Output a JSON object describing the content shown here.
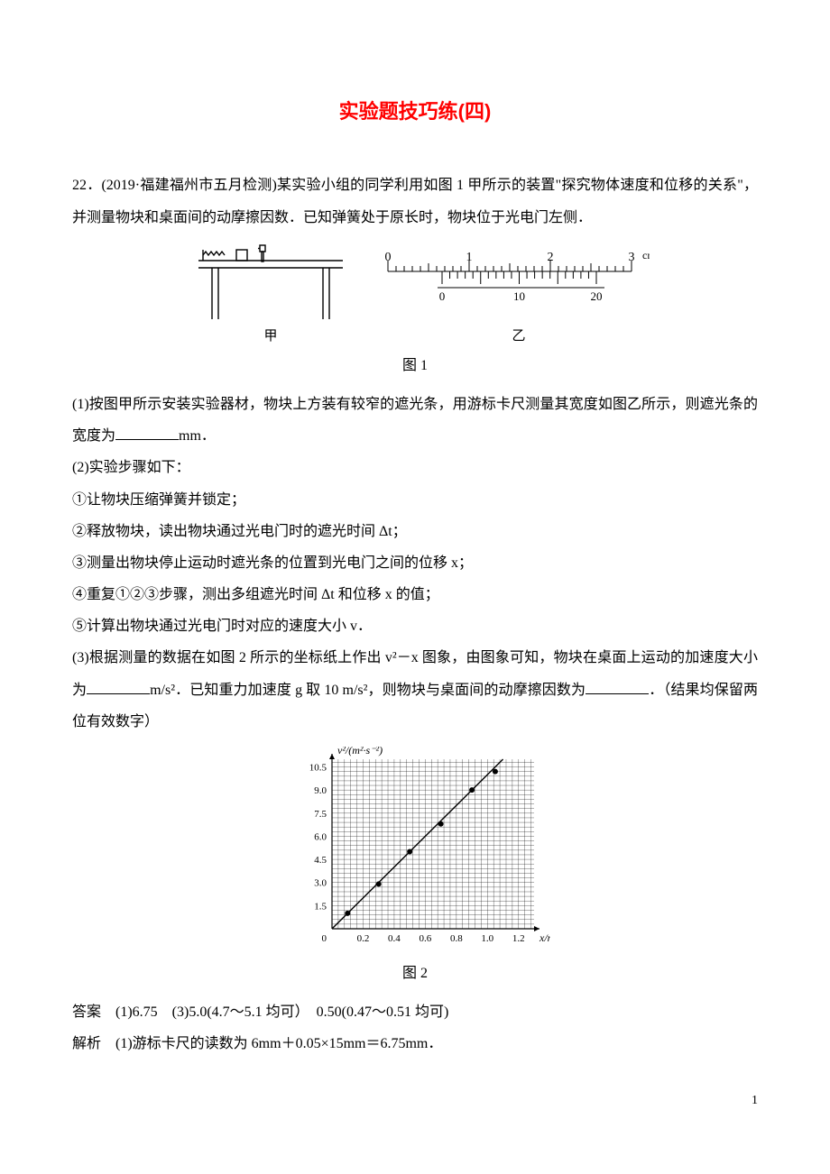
{
  "title": "实验题技巧练(四)",
  "q": {
    "num": "22．",
    "source": "(2019·福建福州市五月检测)",
    "intro1": "某实验小组的同学利用如图 1 甲所示的装置\"探究物体速度和位移的关系\"，并测量物块和桌面间的动摩擦因数．已知弹簧处于原长时，物块位于光电门左侧．",
    "fig1_caption": "图 1",
    "p1a": "(1)按图甲所示安装实验器材，物块上方装有较窄的遮光条，用游标卡尺测量其宽度如图乙所示，则遮光条的宽度为",
    "p1b": "mm．",
    "p2": "(2)实验步骤如下：",
    "s1": "①让物块压缩弹簧并锁定；",
    "s2": "②释放物块，读出物块通过光电门时的遮光时间 Δt；",
    "s3": "③测量出物块停止运动时遮光条的位置到光电门之间的位移 x；",
    "s4": "④重复①②③步骤，测出多组遮光时间 Δt 和位移 x 的值；",
    "s5": "⑤计算出物块通过光电门时对应的速度大小 v．",
    "p3a": "(3)根据测量的数据在如图 2 所示的坐标纸上作出 v²－x 图象，由图象可知，物块在桌面上运动的加速度大小为",
    "p3b": "m/s²．已知重力加速度 g 取 10 m/s²，则物块与桌面间的动摩擦因数为",
    "p3c": "．（结果均保留两位有效数字）",
    "fig2_caption": "图 2",
    "ans_label": "答案　",
    "ans": "(1)6.75　(3)5.0(4.7～5.1 均可）　0.50(0.47～0.51 均可)",
    "expl_label": "解析　",
    "expl": "(1)游标卡尺的读数为 6mm＋0.05×15mm＝6.75mm．"
  },
  "fig1": {
    "table": {
      "stroke": "#000000",
      "stroke_width": 1.4
    },
    "label_jia": "甲",
    "label_yi": "乙",
    "ruler": {
      "main_ticks": [
        "0",
        "1",
        "2",
        "3"
      ],
      "main_unit": "cm",
      "vernier_ticks": [
        "0",
        "10",
        "20"
      ],
      "stroke": "#000000"
    }
  },
  "fig2": {
    "type": "scatter-line",
    "xlabel": "x/m",
    "ylabel": "v²/(m²·s⁻²)",
    "xlim": [
      0,
      1.3
    ],
    "ylim": [
      0,
      11
    ],
    "xticks": [
      0.2,
      0.4,
      0.6,
      0.8,
      1.0,
      1.2
    ],
    "yticks": [
      1.5,
      3.0,
      4.5,
      6.0,
      7.5,
      9.0,
      10.5
    ],
    "minor_x_step": 0.04,
    "minor_y_step": 0.3,
    "grid_color": "#000000",
    "grid_width": 0.3,
    "axis_color": "#000000",
    "axis_width": 1.2,
    "line_color": "#000000",
    "line_width": 1.4,
    "marker": "circle",
    "marker_size": 3,
    "marker_fill": "#000000",
    "points": [
      {
        "x": 0.1,
        "y": 1.0
      },
      {
        "x": 0.3,
        "y": 2.9
      },
      {
        "x": 0.5,
        "y": 5.0
      },
      {
        "x": 0.7,
        "y": 6.8
      },
      {
        "x": 0.9,
        "y": 9.0
      },
      {
        "x": 1.05,
        "y": 10.2
      }
    ],
    "fit_line": {
      "x1": 0.0,
      "y1": 0.0,
      "x2": 1.1,
      "y2": 11.0
    },
    "font_size": 13
  },
  "page_number": "1"
}
